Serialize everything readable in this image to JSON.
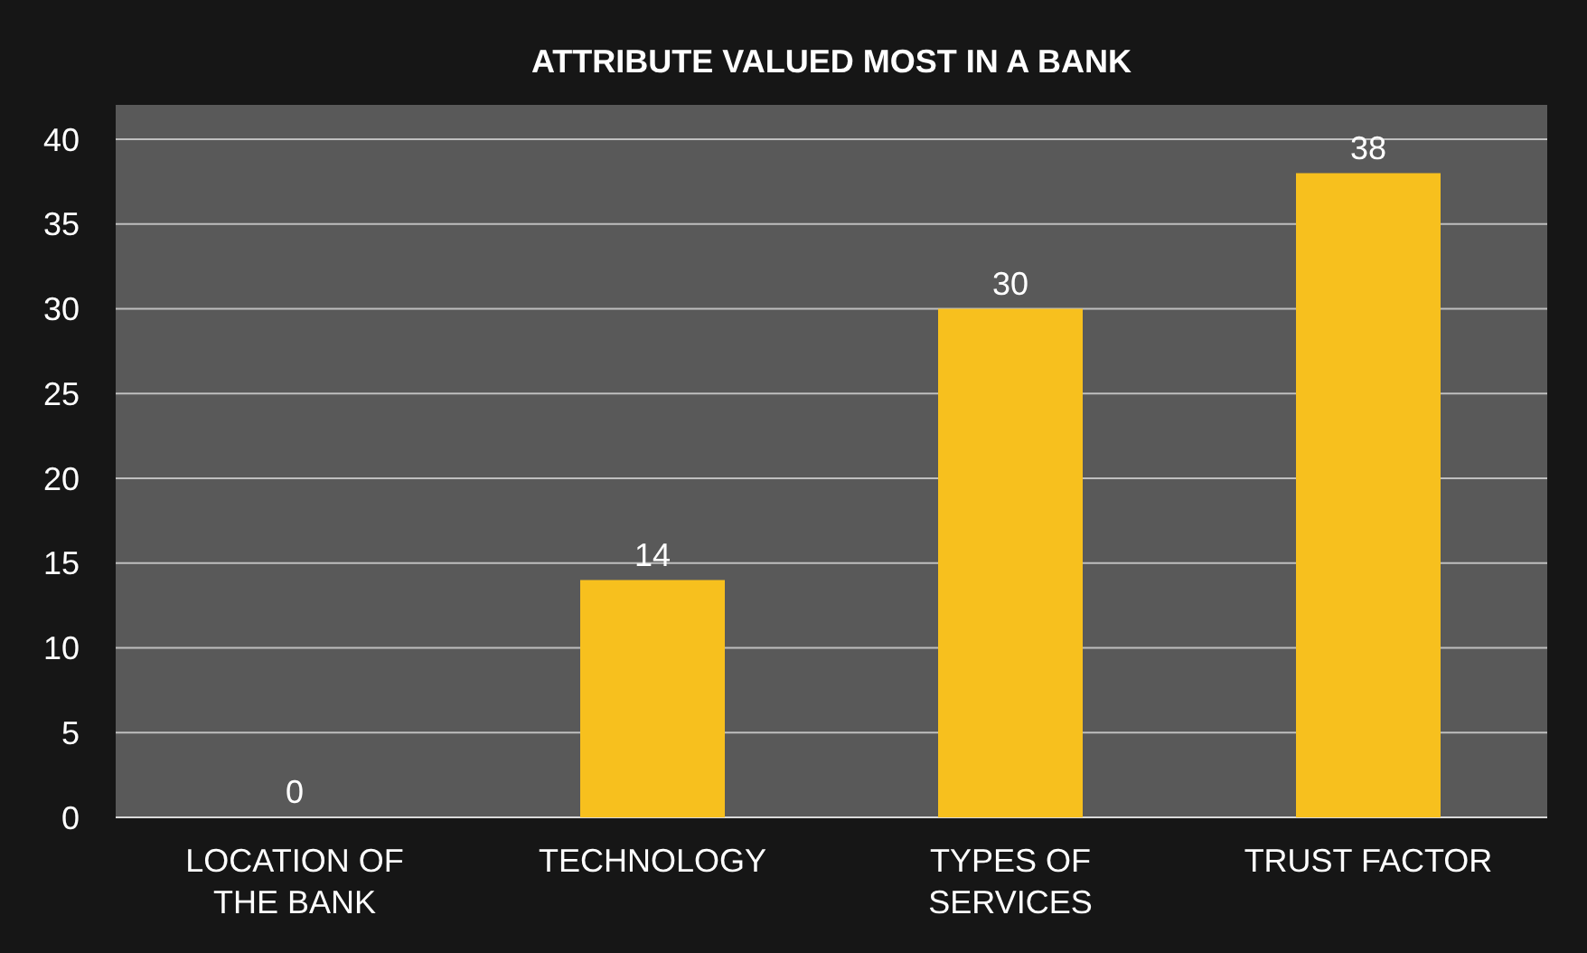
{
  "chart_data": {
    "type": "bar",
    "title": "ATTRIBUTE VALUED MOST IN A BANK",
    "categories": [
      "LOCATION OF THE BANK",
      "TECHNOLOGY",
      "TYPES OF SERVICES",
      "TRUST FACTOR"
    ],
    "values": [
      0,
      14,
      30,
      38
    ],
    "color": "#f7c01e",
    "ylim": [
      0,
      40
    ],
    "yticks": [
      0,
      5,
      10,
      15,
      20,
      25,
      30,
      35,
      40
    ],
    "grid": "y",
    "data_labels": true
  }
}
